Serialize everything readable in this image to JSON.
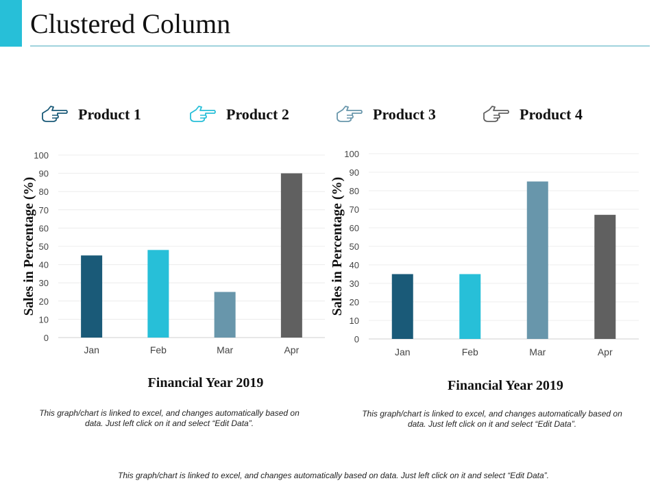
{
  "page": {
    "title": "Clustered Column",
    "footer_note": "This graph/chart is linked to excel, and changes automatically based on data. Just left click on it and select “Edit Data”.",
    "accent_color": "#27bfd8"
  },
  "legend": [
    {
      "label": "Product 1",
      "color": "#1a5a78",
      "icon": "pointing-hand-icon"
    },
    {
      "label": "Product 2",
      "color": "#27bfd8",
      "icon": "pointing-hand-icon"
    },
    {
      "label": "Product 3",
      "color": "#6896ab",
      "icon": "pointing-hand-icon"
    },
    {
      "label": "Product 4",
      "color": "#606060",
      "icon": "pointing-hand-icon"
    }
  ],
  "chart_data": [
    {
      "type": "bar",
      "title": "",
      "categories": [
        "Jan",
        "Feb",
        "Mar",
        "Apr"
      ],
      "values": [
        45,
        48,
        25,
        90
      ],
      "bar_colors": [
        "#1a5a78",
        "#27bfd8",
        "#6896ab",
        "#606060"
      ],
      "xlabel": "Financial Year 2019",
      "ylabel": "Sales in Percentage (%)",
      "ylim": [
        0,
        100
      ],
      "yticks": [
        "0",
        "10",
        "20",
        "30",
        "40",
        "50",
        "60",
        "70",
        "80",
        "90",
        "100"
      ],
      "grid": true,
      "note": "This graph/chart is linked to excel, and changes automatically based on data.  Just left click on it and select “Edit Data”."
    },
    {
      "type": "bar",
      "title": "",
      "categories": [
        "Jan",
        "Feb",
        "Mar",
        "Apr"
      ],
      "values": [
        35,
        35,
        85,
        67
      ],
      "bar_colors": [
        "#1a5a78",
        "#27bfd8",
        "#6896ab",
        "#606060"
      ],
      "xlabel": "Financial Year 2019",
      "ylabel": "Sales in Percentage (%)",
      "ylim": [
        0,
        100
      ],
      "yticks": [
        "0",
        "10",
        "20",
        "30",
        "40",
        "50",
        "60",
        "70",
        "80",
        "90",
        "100"
      ],
      "grid": true,
      "note": "This graph/chart is linked to excel, and changes automatically based on data.  Just left click on it and select “Edit Data”."
    }
  ]
}
